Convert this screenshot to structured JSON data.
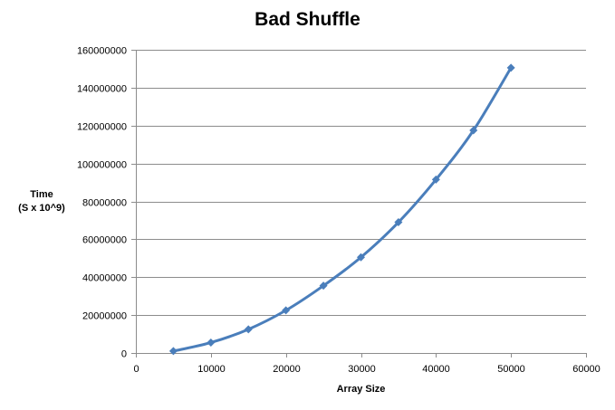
{
  "chart_data": {
    "type": "line",
    "title": "Bad Shuffle",
    "xlabel": "Array Size",
    "ylabel_lines": [
      "Time",
      "(S x 10^9)"
    ],
    "xlim": [
      0,
      60000
    ],
    "ylim": [
      0,
      160000000
    ],
    "x_ticks": [
      0,
      10000,
      20000,
      30000,
      40000,
      50000,
      60000
    ],
    "y_ticks": [
      0,
      20000000,
      40000000,
      60000000,
      80000000,
      100000000,
      120000000,
      140000000,
      160000000
    ],
    "grid": true,
    "series": [
      {
        "x": [
          5000,
          10000,
          15000,
          20000,
          25000,
          30000,
          35000,
          40000,
          45000,
          50000
        ],
        "y": [
          1000000,
          5500000,
          12500000,
          22500000,
          35500000,
          50500000,
          69000000,
          91500000,
          117500000,
          150500000
        ],
        "color": "#4a7ebb",
        "marker": "diamond"
      }
    ]
  }
}
